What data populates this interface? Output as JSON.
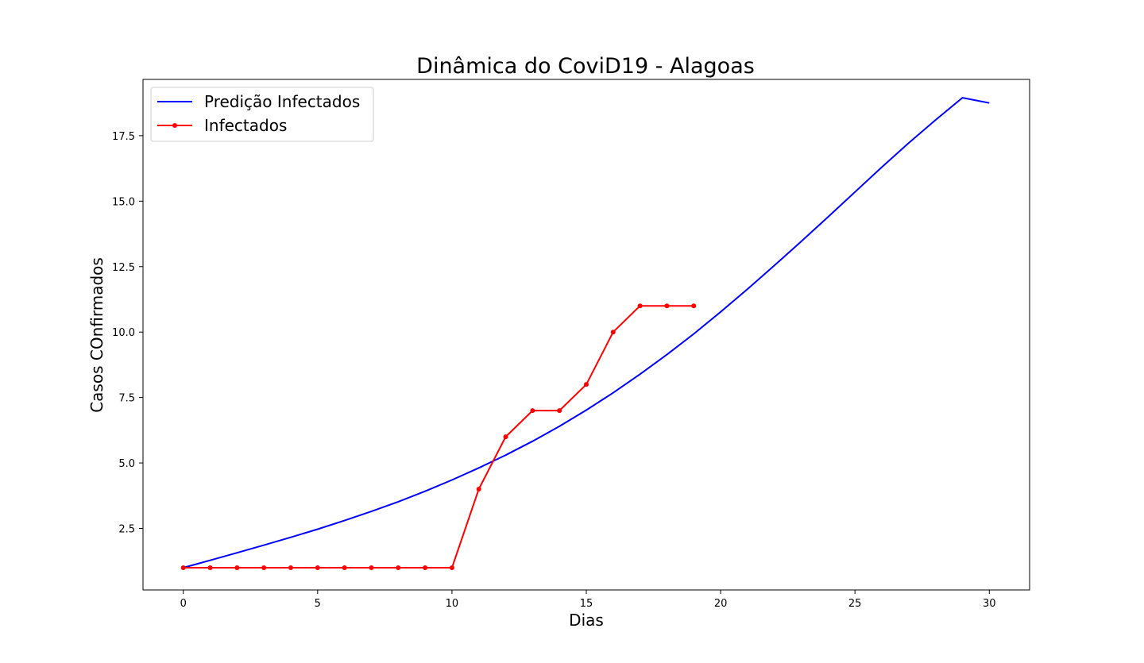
{
  "chart_data": {
    "type": "line",
    "title": "Dinâmica do CoviD19 - Alagoas",
    "xlabel": "Dias",
    "ylabel": "Casos COnfirmados",
    "xlim": [
      -1.5,
      31.5
    ],
    "ylim": [
      0.15,
      19.65
    ],
    "xticks": [
      0,
      5,
      10,
      15,
      20,
      25,
      30
    ],
    "yticks": [
      2.5,
      5.0,
      7.5,
      10.0,
      12.5,
      15.0,
      17.5
    ],
    "xtick_labels": [
      "0",
      "5",
      "10",
      "15",
      "20",
      "25",
      "30"
    ],
    "ytick_labels": [
      "2.5",
      "5.0",
      "7.5",
      "10.0",
      "12.5",
      "15.0",
      "17.5"
    ],
    "grid": false,
    "legend_position": "top-left",
    "series": [
      {
        "name": "Predição Infectados",
        "color": "#0000ff",
        "marker": "none",
        "x": [
          0,
          1,
          2,
          3,
          4,
          5,
          6,
          7,
          8,
          9,
          10,
          11,
          12,
          13,
          14,
          15,
          16,
          17,
          18,
          19,
          20,
          21,
          22,
          23,
          24,
          25,
          26,
          27,
          28,
          29,
          30
        ],
        "values": [
          1.0,
          1.28,
          1.57,
          1.86,
          2.16,
          2.47,
          2.8,
          3.15,
          3.52,
          3.92,
          4.35,
          4.81,
          5.3,
          5.83,
          6.4,
          7.02,
          7.68,
          8.39,
          9.14,
          9.93,
          10.77,
          11.64,
          12.54,
          13.46,
          14.4,
          15.35,
          16.3,
          17.22,
          18.1,
          18.95,
          18.75
        ]
      },
      {
        "name": "Infectados",
        "color": "#ff0000",
        "marker": "circle",
        "x": [
          0,
          1,
          2,
          3,
          4,
          5,
          6,
          7,
          8,
          9,
          10,
          11,
          12,
          13,
          14,
          15,
          16,
          17,
          18,
          19
        ],
        "values": [
          1,
          1,
          1,
          1,
          1,
          1,
          1,
          1,
          1,
          1,
          1,
          4,
          6,
          7,
          7,
          8,
          10,
          11,
          11,
          11
        ]
      }
    ]
  }
}
